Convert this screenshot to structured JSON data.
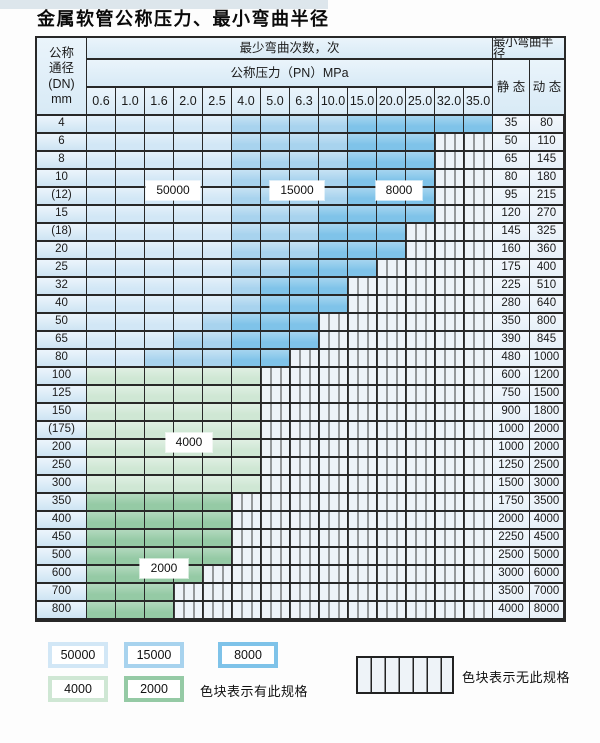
{
  "title": "金属软管公称压力、最小弯曲半径",
  "colors": {
    "cycles_50000": "#d2e7f6",
    "cycles_15000": "#a8d3ee",
    "cycles_8000": "#7fc3e9",
    "cycles_4000": "#cfe7d4",
    "cycles_2000": "#95caa5",
    "hatch_bg": "#eef3f8",
    "hatch_line": "#3c3c3c",
    "border": "#282828"
  },
  "table": {
    "corner_header_lines": [
      "公称",
      "通径",
      "(DN)",
      "mm"
    ],
    "cycles_header": "最少弯曲次数，次",
    "pressure_header": "公称压力（PN）MPa",
    "pressure_columns": [
      "0.6",
      "1.0",
      "1.6",
      "2.0",
      "2.5",
      "4.0",
      "5.0",
      "6.3",
      "10.0",
      "15.0",
      "20.0",
      "25.0",
      "32.0",
      "35.0"
    ],
    "radius_header": "最小弯曲半径",
    "static_header": "静 态",
    "dynamic_header": "动 态",
    "region_labels": [
      {
        "text": "50000"
      },
      {
        "text": "15000"
      },
      {
        "text": "8000"
      },
      {
        "text": "4000"
      },
      {
        "text": "2000"
      }
    ],
    "rows": [
      {
        "dn": "4",
        "static": "35",
        "dynamic": "80",
        "spans": {
          "b50": 5,
          "b15": 4,
          "b80": 5,
          "g40": 0,
          "g20": 0,
          "h": 0
        }
      },
      {
        "dn": "6",
        "static": "50",
        "dynamic": "110",
        "spans": {
          "b50": 5,
          "b15": 4,
          "b80": 3,
          "g40": 0,
          "g20": 0,
          "h": 2
        }
      },
      {
        "dn": "8",
        "static": "65",
        "dynamic": "145",
        "spans": {
          "b50": 5,
          "b15": 4,
          "b80": 3,
          "g40": 0,
          "g20": 0,
          "h": 2
        }
      },
      {
        "dn": "10",
        "static": "80",
        "dynamic": "180",
        "spans": {
          "b50": 5,
          "b15": 4,
          "b80": 3,
          "g40": 0,
          "g20": 0,
          "h": 2
        }
      },
      {
        "dn": "(12)",
        "static": "95",
        "dynamic": "215",
        "spans": {
          "b50": 5,
          "b15": 4,
          "b80": 3,
          "g40": 0,
          "g20": 0,
          "h": 2
        }
      },
      {
        "dn": "15",
        "static": "120",
        "dynamic": "270",
        "spans": {
          "b50": 5,
          "b15": 3,
          "b80": 4,
          "g40": 0,
          "g20": 0,
          "h": 2
        }
      },
      {
        "dn": "(18)",
        "static": "145",
        "dynamic": "325",
        "spans": {
          "b50": 5,
          "b15": 3,
          "b80": 3,
          "g40": 0,
          "g20": 0,
          "h": 3
        }
      },
      {
        "dn": "20",
        "static": "160",
        "dynamic": "360",
        "spans": {
          "b50": 5,
          "b15": 3,
          "b80": 3,
          "g40": 0,
          "g20": 0,
          "h": 3
        }
      },
      {
        "dn": "25",
        "static": "175",
        "dynamic": "400",
        "spans": {
          "b50": 5,
          "b15": 2,
          "b80": 3,
          "g40": 0,
          "g20": 0,
          "h": 4
        }
      },
      {
        "dn": "32",
        "static": "225",
        "dynamic": "510",
        "spans": {
          "b50": 5,
          "b15": 1,
          "b80": 3,
          "g40": 0,
          "g20": 0,
          "h": 5
        }
      },
      {
        "dn": "40",
        "static": "280",
        "dynamic": "640",
        "spans": {
          "b50": 5,
          "b15": 1,
          "b80": 3,
          "g40": 0,
          "g20": 0,
          "h": 5
        }
      },
      {
        "dn": "50",
        "static": "350",
        "dynamic": "800",
        "spans": {
          "b50": 4,
          "b15": 1,
          "b80": 3,
          "g40": 0,
          "g20": 0,
          "h": 6
        }
      },
      {
        "dn": "65",
        "static": "390",
        "dynamic": "845",
        "spans": {
          "b50": 3,
          "b15": 2,
          "b80": 3,
          "g40": 0,
          "g20": 0,
          "h": 6
        }
      },
      {
        "dn": "80",
        "static": "480",
        "dynamic": "1000",
        "spans": {
          "b50": 2,
          "b15": 3,
          "b80": 2,
          "g40": 0,
          "g20": 0,
          "h": 7
        }
      },
      {
        "dn": "100",
        "static": "600",
        "dynamic": "1200",
        "spans": {
          "b50": 0,
          "b15": 0,
          "b80": 0,
          "g40": 6,
          "g20": 0,
          "h": 8
        }
      },
      {
        "dn": "125",
        "static": "750",
        "dynamic": "1500",
        "spans": {
          "b50": 0,
          "b15": 0,
          "b80": 0,
          "g40": 6,
          "g20": 0,
          "h": 8
        }
      },
      {
        "dn": "150",
        "static": "900",
        "dynamic": "1800",
        "spans": {
          "b50": 0,
          "b15": 0,
          "b80": 0,
          "g40": 6,
          "g20": 0,
          "h": 8
        }
      },
      {
        "dn": "(175)",
        "static": "1000",
        "dynamic": "2000",
        "spans": {
          "b50": 0,
          "b15": 0,
          "b80": 0,
          "g40": 6,
          "g20": 0,
          "h": 8
        }
      },
      {
        "dn": "200",
        "static": "1000",
        "dynamic": "2000",
        "spans": {
          "b50": 0,
          "b15": 0,
          "b80": 0,
          "g40": 6,
          "g20": 0,
          "h": 8
        }
      },
      {
        "dn": "250",
        "static": "1250",
        "dynamic": "2500",
        "spans": {
          "b50": 0,
          "b15": 0,
          "b80": 0,
          "g40": 6,
          "g20": 0,
          "h": 8
        }
      },
      {
        "dn": "300",
        "static": "1500",
        "dynamic": "3000",
        "spans": {
          "b50": 0,
          "b15": 0,
          "b80": 0,
          "g40": 6,
          "g20": 0,
          "h": 8
        }
      },
      {
        "dn": "350",
        "static": "1750",
        "dynamic": "3500",
        "spans": {
          "b50": 0,
          "b15": 0,
          "b80": 0,
          "g40": 0,
          "g20": 5,
          "h": 9
        }
      },
      {
        "dn": "400",
        "static": "2000",
        "dynamic": "4000",
        "spans": {
          "b50": 0,
          "b15": 0,
          "b80": 0,
          "g40": 0,
          "g20": 5,
          "h": 9
        }
      },
      {
        "dn": "450",
        "static": "2250",
        "dynamic": "4500",
        "spans": {
          "b50": 0,
          "b15": 0,
          "b80": 0,
          "g40": 0,
          "g20": 5,
          "h": 9
        }
      },
      {
        "dn": "500",
        "static": "2500",
        "dynamic": "5000",
        "spans": {
          "b50": 0,
          "b15": 0,
          "b80": 0,
          "g40": 0,
          "g20": 5,
          "h": 9
        }
      },
      {
        "dn": "600",
        "static": "3000",
        "dynamic": "6000",
        "spans": {
          "b50": 0,
          "b15": 0,
          "b80": 0,
          "g40": 0,
          "g20": 4,
          "h": 10
        }
      },
      {
        "dn": "700",
        "static": "3500",
        "dynamic": "7000",
        "spans": {
          "b50": 0,
          "b15": 0,
          "b80": 0,
          "g40": 0,
          "g20": 3,
          "h": 11
        }
      },
      {
        "dn": "800",
        "static": "4000",
        "dynamic": "8000",
        "spans": {
          "b50": 0,
          "b15": 0,
          "b80": 0,
          "g40": 0,
          "g20": 3,
          "h": 11
        }
      }
    ]
  },
  "legend": {
    "available_label": "色块表示有此规格",
    "unavailable_label": "色块表示无此规格",
    "swatches": [
      {
        "text": "50000",
        "color_key": "cycles_50000"
      },
      {
        "text": "15000",
        "color_key": "cycles_15000"
      },
      {
        "text": "8000",
        "color_key": "cycles_8000"
      },
      {
        "text": "4000",
        "color_key": "cycles_4000"
      },
      {
        "text": "2000",
        "color_key": "cycles_2000"
      }
    ]
  }
}
